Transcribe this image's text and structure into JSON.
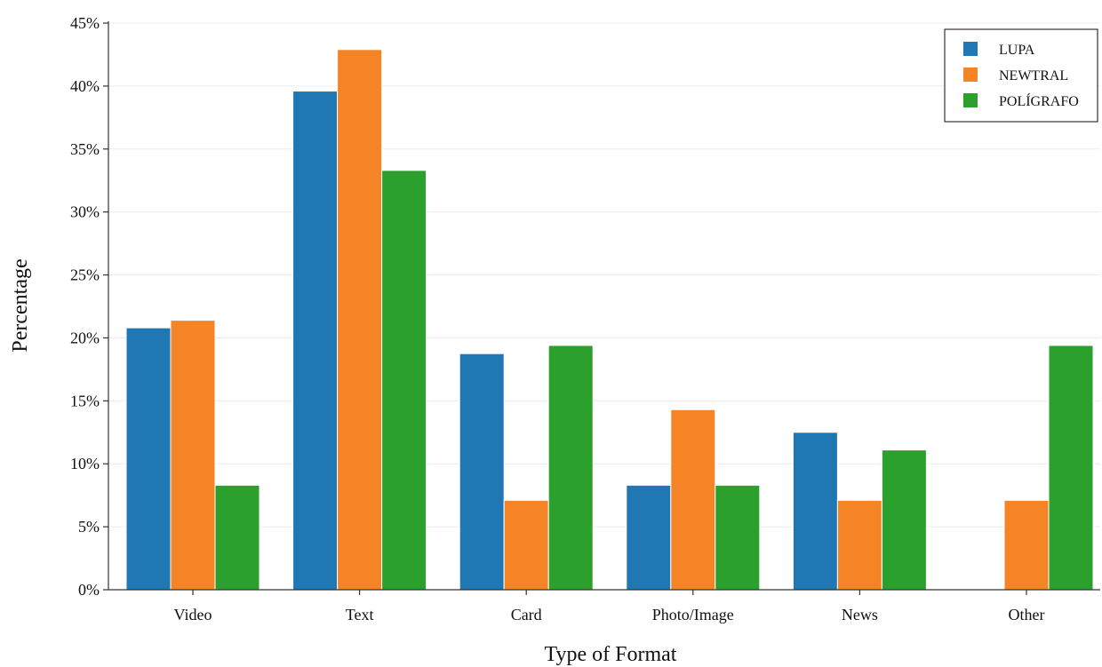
{
  "chart_data": {
    "type": "bar",
    "title": "",
    "xlabel": "Type of Format",
    "ylabel": "Percentage",
    "categories": [
      "Video",
      "Text",
      "Card",
      "Photo/Image",
      "News",
      "Other"
    ],
    "series": [
      {
        "name": "LUPA",
        "color": "#1f77b4",
        "values": [
          20.8,
          39.6,
          18.75,
          8.3,
          12.5,
          0
        ]
      },
      {
        "name": "NEWTRAL",
        "color": "#f58426",
        "values": [
          21.4,
          42.9,
          7.1,
          14.3,
          7.1,
          7.1
        ]
      },
      {
        "name": "POLÍGRAFO",
        "color": "#2ca02c",
        "values": [
          8.3,
          33.3,
          19.4,
          8.3,
          11.1,
          19.4
        ]
      }
    ],
    "ylim": [
      0,
      45
    ],
    "yticks": [
      0,
      5,
      10,
      15,
      20,
      25,
      30,
      35,
      40,
      45
    ],
    "ytick_labels": [
      "0%",
      "5%",
      "10%",
      "15%",
      "20%",
      "25%",
      "30%",
      "35%",
      "40%",
      "45%"
    ],
    "grid": true,
    "legend_position": "top-right"
  }
}
